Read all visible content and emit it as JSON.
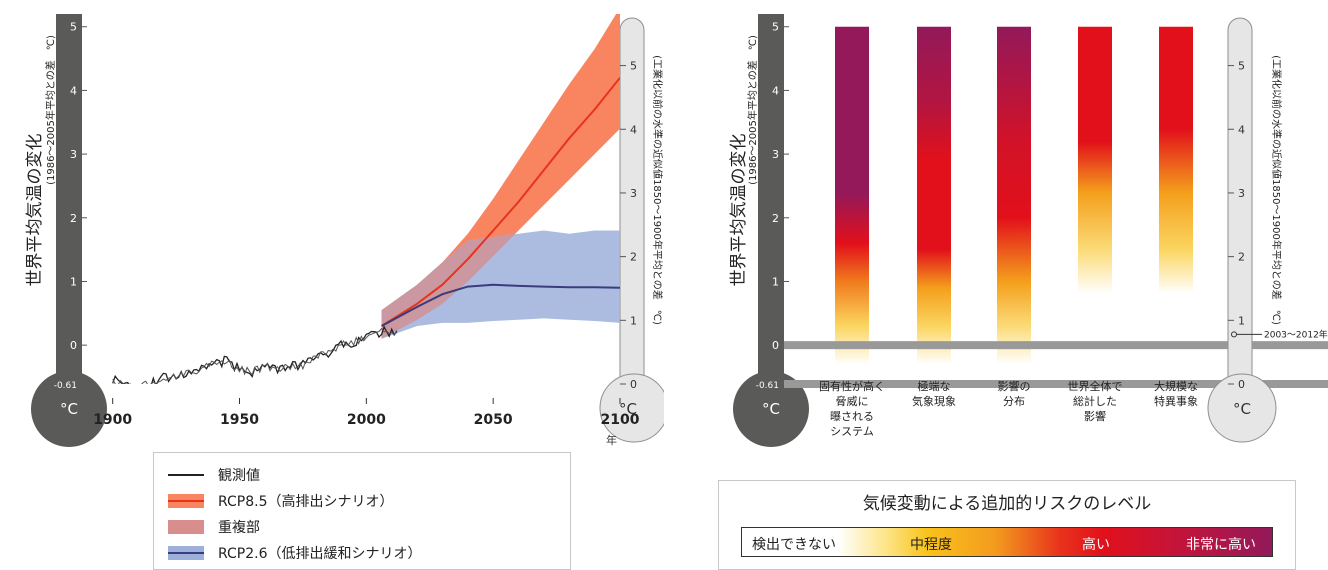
{
  "left_chart": {
    "ylabel": "世界平均気温の変化",
    "ylabel_sub": "(1986～2005年平均との差　℃)",
    "right_label": "(工業化以前の水準の近似値1850～1900年平均との差　℃)",
    "thermometer_unit": "°C",
    "x_unit": "年"
  },
  "right_chart": {
    "ylabel": "世界平均気温の変化",
    "ylabel_sub": "(1986～2005年平均との差　℃)",
    "right_label": "(工業化以前の水準の近似値1850～1900年平均との差　℃)",
    "thermometer_unit": "°C",
    "marker_label": "2003～2012年"
  },
  "legend": {
    "observed": "観測値",
    "rcp85": "RCP8.5（高排出シナリオ）",
    "overlap": "重複部",
    "rcp26": "RCP2.6（低排出緩和シナリオ）"
  },
  "risk_legend": {
    "title": "気候変動による追加的リスクのレベル",
    "levels": [
      "検出できない",
      "中程度",
      "高い",
      "非常に高い"
    ]
  },
  "colors": {
    "observed": "#222222",
    "rcp85_line": "#e8331c",
    "rcp85_band": "#f98560",
    "overlap": "#d98e8e",
    "rcp26_line": "#3b3c7c",
    "rcp26_band": "#9db0dc",
    "thermometer_dark": "#5a5a58",
    "thermometer_light": "#e6e6e6"
  },
  "chart_data": [
    {
      "type": "line",
      "xlabel": "年",
      "ylabel": "世界平均気温の変化",
      "xlim": [
        1895,
        2100
      ],
      "ylim": [
        -0.61,
        5.2
      ],
      "x_ticks": [
        1900,
        1950,
        2000,
        2050,
        2100
      ],
      "y_ticks_left": [
        -0.61,
        0,
        1,
        2,
        3,
        4,
        5
      ],
      "y_ticks_right": [
        0,
        1,
        2,
        3,
        4,
        5
      ],
      "right_axis_offset": 0.61,
      "series": [
        {
          "name": "観測値",
          "x": [
            1900,
            1905,
            1910,
            1915,
            1920,
            1925,
            1930,
            1935,
            1940,
            1945,
            1950,
            1955,
            1960,
            1965,
            1970,
            1975,
            1980,
            1985,
            1990,
            1995,
            2000,
            2005,
            2010,
            2012
          ],
          "y": [
            -0.55,
            -0.62,
            -0.68,
            -0.58,
            -0.52,
            -0.48,
            -0.42,
            -0.38,
            -0.28,
            -0.25,
            -0.38,
            -0.42,
            -0.33,
            -0.38,
            -0.33,
            -0.32,
            -0.15,
            -0.12,
            0.0,
            0.05,
            0.12,
            0.2,
            0.22,
            0.2
          ]
        },
        {
          "name": "RCP8.5",
          "x": [
            2006,
            2020,
            2030,
            2040,
            2050,
            2060,
            2070,
            2080,
            2090,
            2100
          ],
          "y": [
            0.3,
            0.65,
            0.95,
            1.35,
            1.8,
            2.25,
            2.75,
            3.25,
            3.7,
            4.2
          ],
          "lower": [
            0.1,
            0.4,
            0.65,
            1.0,
            1.4,
            1.8,
            2.2,
            2.6,
            3.0,
            3.4
          ],
          "upper": [
            0.55,
            0.95,
            1.3,
            1.75,
            2.3,
            2.9,
            3.5,
            4.1,
            4.65,
            5.3
          ]
        },
        {
          "name": "RCP2.6",
          "x": [
            2006,
            2020,
            2030,
            2040,
            2050,
            2060,
            2070,
            2080,
            2090,
            2100
          ],
          "y": [
            0.3,
            0.6,
            0.8,
            0.92,
            0.95,
            0.93,
            0.92,
            0.91,
            0.91,
            0.9
          ],
          "lower": [
            0.1,
            0.3,
            0.35,
            0.35,
            0.38,
            0.4,
            0.42,
            0.4,
            0.38,
            0.35
          ],
          "upper": [
            0.55,
            0.95,
            1.3,
            1.65,
            1.7,
            1.75,
            1.8,
            1.75,
            1.8,
            1.8
          ]
        }
      ]
    },
    {
      "type": "heatmap",
      "ylim": [
        -0.61,
        5.2
      ],
      "y_ticks_left": [
        -0.61,
        0,
        1,
        2,
        3,
        4,
        5
      ],
      "y_ticks_right": [
        0,
        1,
        2,
        3,
        4,
        5
      ],
      "right_axis_offset": 0.61,
      "reference_lines": [
        -0.61,
        0
      ],
      "marker_value": 0.78,
      "categories": [
        "固有性が高く\n脅威に\n曝される\nシステム",
        "極端な\n気象現象",
        "影響の\n分布",
        "世界全体で\n総計した\n影響",
        "大規模な\n特異事象"
      ],
      "risk_scale": [
        "#ffffff",
        "#f9c31c",
        "#e2101b",
        "#93195a"
      ],
      "columns": [
        {
          "stops": [
            [
              -0.3,
              0.0
            ],
            [
              0.3,
              0.7
            ],
            [
              1.0,
              1.4
            ],
            [
              1.6,
              2.0
            ],
            [
              2.4,
              3.0
            ],
            [
              5.0,
              3.0
            ]
          ]
        },
        {
          "stops": [
            [
              -0.3,
              0.0
            ],
            [
              0.3,
              0.7
            ],
            [
              0.9,
              1.2
            ],
            [
              1.5,
              2.0
            ],
            [
              2.9,
              2.0
            ],
            [
              3.8,
              2.6
            ],
            [
              5.0,
              3.0
            ]
          ]
        },
        {
          "stops": [
            [
              -0.3,
              0.0
            ],
            [
              0.3,
              0.6
            ],
            [
              1.0,
              1.2
            ],
            [
              2.0,
              2.0
            ],
            [
              3.2,
              2.2
            ],
            [
              4.3,
              2.7
            ],
            [
              5.0,
              3.0
            ]
          ]
        },
        {
          "stops": [
            [
              0.8,
              0.0
            ],
            [
              1.5,
              0.6
            ],
            [
              2.4,
              1.2
            ],
            [
              3.2,
              2.0
            ],
            [
              5.0,
              2.0
            ]
          ]
        },
        {
          "stops": [
            [
              0.8,
              0.0
            ],
            [
              1.5,
              0.7
            ],
            [
              2.4,
              1.2
            ],
            [
              3.4,
              2.0
            ],
            [
              5.0,
              2.0
            ]
          ]
        }
      ]
    }
  ]
}
